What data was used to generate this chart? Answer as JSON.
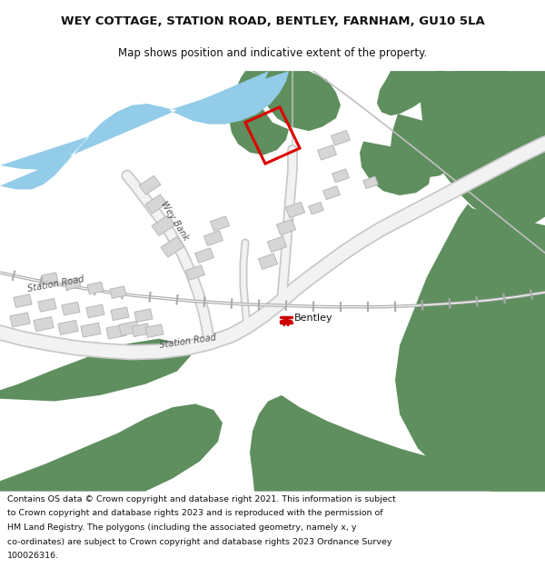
{
  "title": "WEY COTTAGE, STATION ROAD, BENTLEY, FARNHAM, GU10 5LA",
  "subtitle": "Map shows position and indicative extent of the property.",
  "footer": "Contains OS data © Crown copyright and database right 2021. This information is subject to Crown copyright and database rights 2023 and is reproduced with the permission of HM Land Registry. The polygons (including the associated geometry, namely x, y co-ordinates) are subject to Crown copyright and database rights 2023 Ordnance Survey 100026316.",
  "bg_color": "#ffffff",
  "map_bg": "#f7f6f4",
  "green_color": "#5f8f5f",
  "road_color": "#f0f0f0",
  "road_outline": "#cccccc",
  "building_color": "#d6d6d6",
  "building_outline": "#b8b8b8",
  "water_color": "#92cce8",
  "red_outline": "#dd0000",
  "railway_color": "#cc0000",
  "text_color": "#333333"
}
